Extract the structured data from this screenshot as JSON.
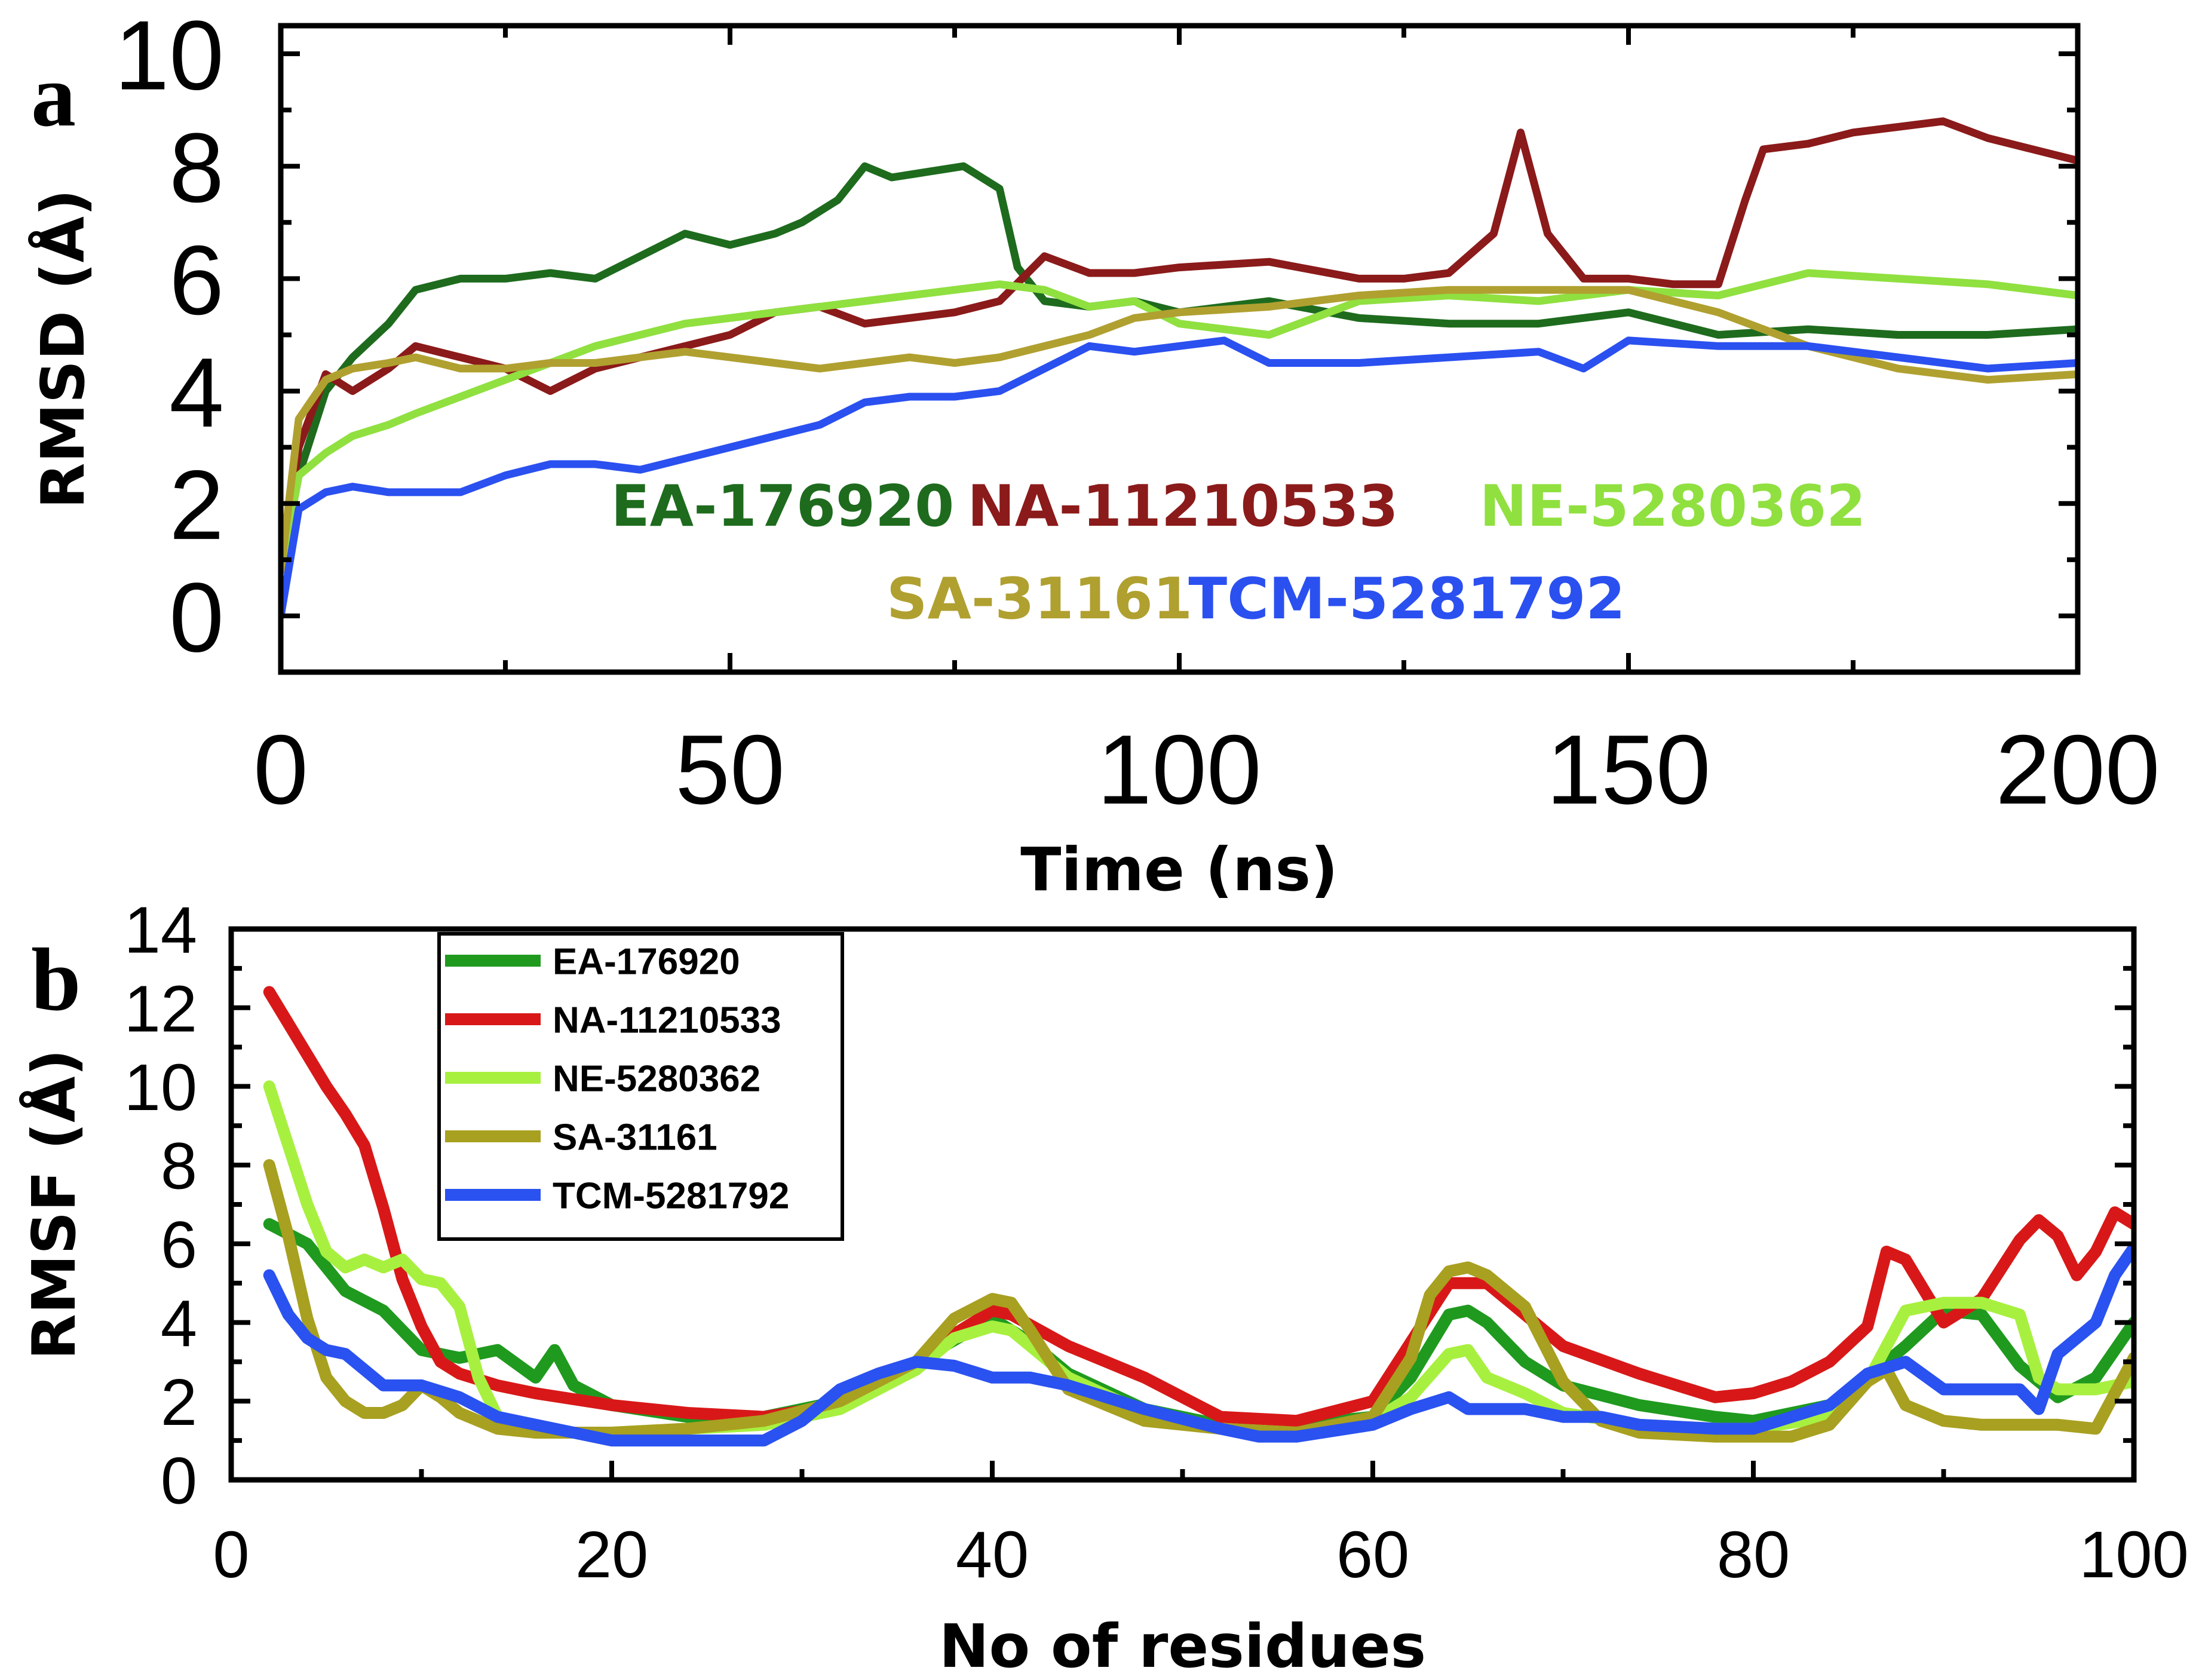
{
  "chart_data": [
    {
      "panel": "a",
      "type": "line",
      "xlabel": "Time (ns)",
      "ylabel": "RMSD (Å)",
      "xlim": [
        0,
        200
      ],
      "ylim": [
        -1,
        10.5
      ],
      "xticks": [
        "0",
        "50",
        "100",
        "150",
        "200"
      ],
      "yticks": [
        "0",
        "2",
        "4",
        "6",
        "8",
        "10"
      ],
      "legend": "inline labels inside plot",
      "series": [
        {
          "name": "EA-176920",
          "color": "#1e6b1e",
          "x": [
            0,
            2,
            5,
            8,
            12,
            15,
            20,
            25,
            30,
            35,
            40,
            45,
            50,
            55,
            58,
            62,
            65,
            68,
            72,
            76,
            80,
            82,
            85,
            90,
            95,
            100,
            110,
            120,
            130,
            140,
            150,
            160,
            170,
            180,
            190,
            200
          ],
          "y": [
            0.8,
            2.5,
            4.0,
            4.6,
            5.2,
            5.8,
            6.0,
            6.0,
            6.1,
            6.0,
            6.4,
            6.8,
            6.6,
            6.8,
            7.0,
            7.4,
            8.0,
            7.8,
            7.9,
            8.0,
            7.6,
            6.2,
            5.6,
            5.5,
            5.6,
            5.4,
            5.6,
            5.3,
            5.2,
            5.2,
            5.4,
            5.0,
            5.1,
            5.0,
            5.0,
            5.1
          ]
        },
        {
          "name": "NA-11210533",
          "color": "#8b1a1a",
          "x": [
            0,
            2,
            5,
            8,
            12,
            15,
            20,
            25,
            30,
            35,
            40,
            45,
            50,
            55,
            60,
            65,
            70,
            75,
            80,
            85,
            90,
            95,
            100,
            110,
            120,
            125,
            130,
            135,
            138,
            141,
            145,
            150,
            155,
            160,
            163,
            165,
            170,
            175,
            180,
            185,
            190,
            195,
            200
          ],
          "y": [
            0.8,
            3.0,
            4.3,
            4.0,
            4.4,
            4.8,
            4.6,
            4.4,
            4.0,
            4.4,
            4.6,
            4.8,
            5.0,
            5.4,
            5.5,
            5.2,
            5.3,
            5.4,
            5.6,
            6.4,
            6.1,
            6.1,
            6.2,
            6.3,
            6.0,
            6.0,
            6.1,
            6.8,
            8.6,
            6.8,
            6.0,
            6.0,
            5.9,
            5.9,
            7.4,
            8.3,
            8.4,
            8.6,
            8.7,
            8.8,
            8.5,
            8.3,
            8.1
          ]
        },
        {
          "name": "NE-5280362",
          "color": "#90e040",
          "x": [
            0,
            2,
            5,
            8,
            12,
            15,
            20,
            25,
            30,
            35,
            40,
            45,
            50,
            55,
            60,
            65,
            70,
            75,
            80,
            85,
            90,
            95,
            100,
            110,
            120,
            130,
            140,
            150,
            160,
            170,
            180,
            190,
            200
          ],
          "y": [
            0.8,
            2.5,
            2.9,
            3.2,
            3.4,
            3.6,
            3.9,
            4.2,
            4.5,
            4.8,
            5.0,
            5.2,
            5.3,
            5.4,
            5.5,
            5.6,
            5.7,
            5.8,
            5.9,
            5.8,
            5.5,
            5.6,
            5.2,
            5.0,
            5.6,
            5.7,
            5.6,
            5.8,
            5.7,
            6.1,
            6.0,
            5.9,
            5.7
          ]
        },
        {
          "name": "SA-31161",
          "color": "#b0a030",
          "x": [
            0,
            2,
            5,
            8,
            12,
            15,
            20,
            25,
            30,
            35,
            40,
            45,
            50,
            55,
            60,
            65,
            70,
            75,
            80,
            85,
            90,
            95,
            100,
            110,
            120,
            130,
            140,
            150,
            160,
            170,
            180,
            190,
            200
          ],
          "y": [
            0.8,
            3.5,
            4.2,
            4.4,
            4.5,
            4.6,
            4.4,
            4.4,
            4.5,
            4.5,
            4.6,
            4.7,
            4.6,
            4.5,
            4.4,
            4.5,
            4.6,
            4.5,
            4.6,
            4.8,
            5.0,
            5.3,
            5.4,
            5.5,
            5.7,
            5.8,
            5.8,
            5.8,
            5.4,
            4.8,
            4.4,
            4.2,
            4.3
          ]
        },
        {
          "name": "TCM-5281792",
          "color": "#2b50f0",
          "x": [
            0,
            2,
            5,
            8,
            12,
            15,
            20,
            25,
            30,
            35,
            40,
            45,
            50,
            55,
            60,
            65,
            70,
            75,
            80,
            85,
            90,
            95,
            100,
            105,
            110,
            120,
            130,
            140,
            145,
            150,
            160,
            170,
            180,
            190,
            200
          ],
          "y": [
            0.0,
            1.9,
            2.2,
            2.3,
            2.2,
            2.2,
            2.2,
            2.5,
            2.7,
            2.7,
            2.6,
            2.8,
            3.0,
            3.2,
            3.4,
            3.8,
            3.9,
            3.9,
            4.0,
            4.4,
            4.8,
            4.7,
            4.8,
            4.9,
            4.5,
            4.5,
            4.6,
            4.7,
            4.4,
            4.9,
            4.8,
            4.8,
            4.6,
            4.4,
            4.5
          ]
        }
      ]
    },
    {
      "panel": "b",
      "type": "line",
      "xlabel": "No of residues",
      "ylabel": "RMSF (Å)",
      "xlim": [
        0,
        100
      ],
      "ylim": [
        0,
        14
      ],
      "xticks": [
        "0",
        "20",
        "40",
        "60",
        "80",
        "100"
      ],
      "yticks": [
        "0",
        "2",
        "4",
        "6",
        "8",
        "10",
        "12",
        "14"
      ],
      "legend": "top-left",
      "series": [
        {
          "name": "EA-176920",
          "color": "#1f9a1f",
          "x": [
            2,
            4,
            6,
            8,
            10,
            12,
            14,
            16,
            17,
            18,
            20,
            24,
            28,
            32,
            36,
            40,
            42,
            44,
            48,
            52,
            56,
            60,
            62,
            64,
            65,
            66,
            68,
            70,
            74,
            78,
            80,
            84,
            86,
            88,
            90,
            92,
            94,
            96,
            98,
            100
          ],
          "y": [
            6.5,
            6.0,
            4.8,
            4.3,
            3.3,
            3.1,
            3.3,
            2.6,
            3.3,
            2.4,
            1.9,
            1.6,
            1.6,
            2.0,
            3.0,
            4.1,
            3.5,
            2.7,
            1.8,
            1.4,
            1.4,
            1.6,
            2.6,
            4.2,
            4.3,
            4.0,
            3.0,
            2.4,
            1.9,
            1.6,
            1.5,
            1.9,
            2.6,
            3.4,
            4.3,
            4.2,
            2.9,
            2.1,
            2.6,
            4.0
          ]
        },
        {
          "name": "NA-11210533",
          "color": "#d81818",
          "x": [
            2,
            3,
            4,
            5,
            6,
            7,
            8,
            9,
            10,
            11,
            12,
            14,
            16,
            20,
            24,
            28,
            32,
            36,
            38,
            40,
            41,
            44,
            48,
            52,
            56,
            60,
            62,
            64,
            66,
            68,
            70,
            74,
            78,
            80,
            82,
            84,
            86,
            87,
            88,
            90,
            92,
            94,
            95,
            96,
            97,
            98,
            99,
            100
          ],
          "y": [
            12.4,
            11.6,
            10.8,
            10.0,
            9.3,
            8.5,
            6.9,
            5.1,
            3.9,
            3.0,
            2.7,
            2.4,
            2.2,
            1.9,
            1.7,
            1.6,
            1.9,
            2.8,
            3.7,
            4.3,
            4.2,
            3.4,
            2.6,
            1.6,
            1.5,
            2.0,
            3.5,
            5.0,
            5.0,
            4.2,
            3.4,
            2.7,
            2.1,
            2.2,
            2.5,
            3.0,
            3.9,
            5.8,
            5.6,
            4.0,
            4.6,
            6.1,
            6.6,
            6.2,
            5.2,
            5.8,
            6.8,
            6.5
          ]
        },
        {
          "name": "NE-5280362",
          "color": "#a8f040",
          "x": [
            2,
            3,
            4,
            5,
            6,
            7,
            8,
            9,
            10,
            11,
            12,
            13,
            14,
            16,
            20,
            24,
            28,
            32,
            36,
            38,
            40,
            41,
            42,
            44,
            48,
            52,
            56,
            60,
            62,
            64,
            65,
            66,
            68,
            70,
            74,
            78,
            80,
            84,
            86,
            88,
            90,
            92,
            94,
            95,
            96,
            97,
            98,
            100
          ],
          "y": [
            10.0,
            8.5,
            7.0,
            5.8,
            5.4,
            5.6,
            5.4,
            5.6,
            5.1,
            5.0,
            4.4,
            2.6,
            1.6,
            1.2,
            1.2,
            1.3,
            1.4,
            1.8,
            2.8,
            3.6,
            3.9,
            3.8,
            3.4,
            2.6,
            1.7,
            1.3,
            1.2,
            1.5,
            2.1,
            3.2,
            3.3,
            2.6,
            2.2,
            1.7,
            1.4,
            1.3,
            1.3,
            1.6,
            2.5,
            4.3,
            4.5,
            4.5,
            4.2,
            2.6,
            2.3,
            2.3,
            2.3,
            2.5
          ]
        },
        {
          "name": "SA-31161",
          "color": "#a8a020",
          "x": [
            2,
            3,
            4,
            5,
            6,
            7,
            8,
            9,
            10,
            11,
            12,
            14,
            16,
            20,
            24,
            28,
            32,
            36,
            38,
            40,
            41,
            42,
            44,
            48,
            52,
            56,
            60,
            62,
            63,
            64,
            65,
            66,
            68,
            70,
            72,
            74,
            78,
            82,
            84,
            86,
            87,
            88,
            90,
            92,
            94,
            96,
            98,
            100
          ],
          "y": [
            8.0,
            6.2,
            4.1,
            2.6,
            2.0,
            1.7,
            1.7,
            1.9,
            2.4,
            2.1,
            1.7,
            1.3,
            1.2,
            1.2,
            1.3,
            1.5,
            2.0,
            3.0,
            4.1,
            4.6,
            4.5,
            3.8,
            2.3,
            1.5,
            1.3,
            1.2,
            1.6,
            3.1,
            4.7,
            5.3,
            5.4,
            5.2,
            4.4,
            2.5,
            1.5,
            1.2,
            1.1,
            1.1,
            1.4,
            2.5,
            2.8,
            1.9,
            1.5,
            1.4,
            1.4,
            1.4,
            1.3,
            3.1
          ]
        },
        {
          "name": "TCM-5281792",
          "color": "#2a52f0",
          "x": [
            2,
            3,
            4,
            5,
            6,
            8,
            10,
            12,
            14,
            16,
            20,
            24,
            26,
            28,
            30,
            32,
            34,
            36,
            38,
            40,
            42,
            44,
            48,
            52,
            54,
            56,
            60,
            62,
            64,
            65,
            66,
            68,
            70,
            72,
            74,
            78,
            80,
            84,
            86,
            88,
            90,
            92,
            94,
            95,
            96,
            98,
            99,
            100
          ],
          "y": [
            5.2,
            4.2,
            3.6,
            3.3,
            3.2,
            2.4,
            2.4,
            2.1,
            1.6,
            1.4,
            1.0,
            1.0,
            1.0,
            1.0,
            1.5,
            2.3,
            2.7,
            3.0,
            2.9,
            2.6,
            2.6,
            2.4,
            1.8,
            1.3,
            1.1,
            1.1,
            1.4,
            1.8,
            2.1,
            1.8,
            1.8,
            1.8,
            1.6,
            1.6,
            1.4,
            1.3,
            1.3,
            1.9,
            2.7,
            3.0,
            2.3,
            2.3,
            2.3,
            1.8,
            3.2,
            4.0,
            5.2,
            5.9
          ]
        }
      ]
    }
  ]
}
